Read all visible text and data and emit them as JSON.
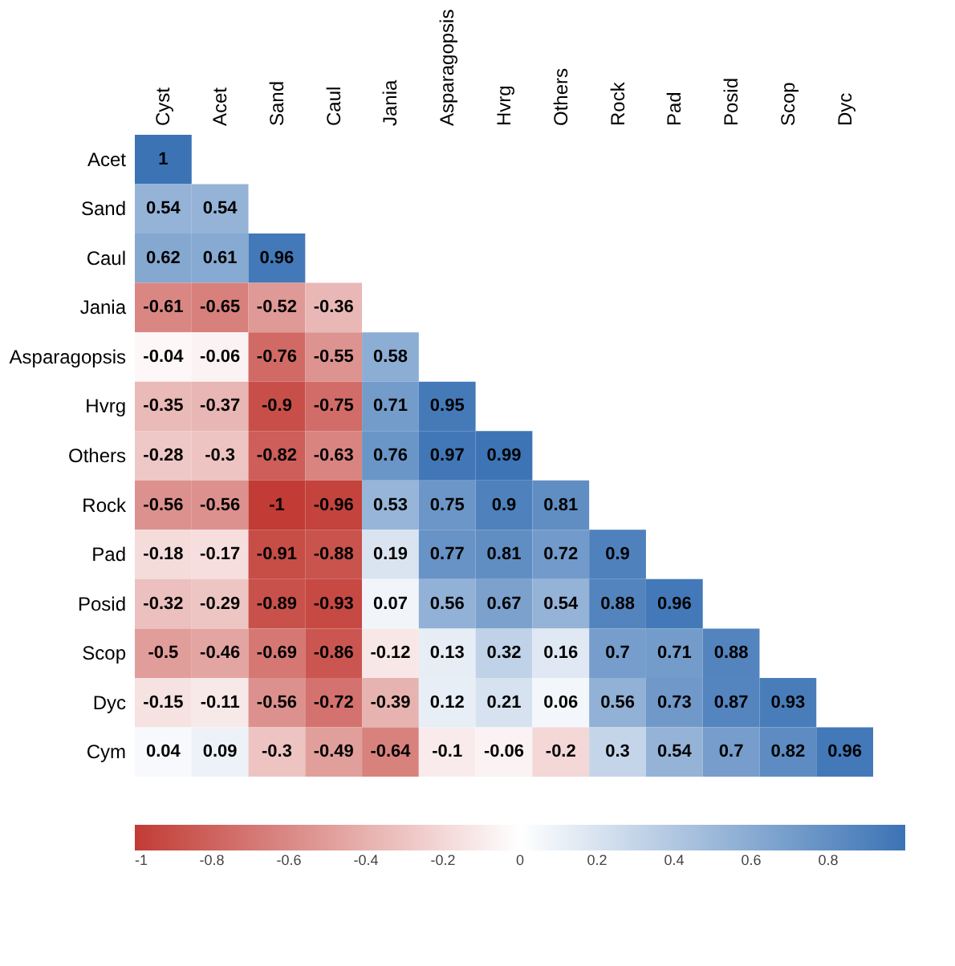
{
  "chart_data": {
    "type": "heatmap",
    "categories": [
      "Cyst",
      "Acet",
      "Sand",
      "Caul",
      "Jania",
      "Asparagopsis",
      "Hvrg",
      "Others",
      "Rock",
      "Pad",
      "Posid",
      "Scop",
      "Dyc"
    ],
    "y_categories": [
      "Acet",
      "Sand",
      "Caul",
      "Jania",
      "Asparagopsis",
      "Hvrg",
      "Others",
      "Rock",
      "Pad",
      "Posid",
      "Scop",
      "Dyc",
      "Cym"
    ],
    "cells": [
      [
        1,
        null,
        null,
        null,
        null,
        null,
        null,
        null,
        null,
        null,
        null,
        null,
        null
      ],
      [
        0.54,
        0.54,
        null,
        null,
        null,
        null,
        null,
        null,
        null,
        null,
        null,
        null,
        null
      ],
      [
        0.62,
        0.61,
        0.96,
        null,
        null,
        null,
        null,
        null,
        null,
        null,
        null,
        null,
        null
      ],
      [
        -0.61,
        -0.65,
        -0.52,
        -0.36,
        null,
        null,
        null,
        null,
        null,
        null,
        null,
        null,
        null
      ],
      [
        -0.04,
        -0.06,
        -0.76,
        -0.55,
        0.58,
        null,
        null,
        null,
        null,
        null,
        null,
        null,
        null
      ],
      [
        -0.35,
        -0.37,
        -0.9,
        -0.75,
        0.71,
        0.95,
        null,
        null,
        null,
        null,
        null,
        null,
        null
      ],
      [
        -0.28,
        -0.3,
        -0.82,
        -0.63,
        0.76,
        0.97,
        0.99,
        null,
        null,
        null,
        null,
        null,
        null
      ],
      [
        -0.56,
        -0.56,
        -1,
        -0.96,
        0.53,
        0.75,
        0.9,
        0.81,
        null,
        null,
        null,
        null,
        null
      ],
      [
        -0.18,
        -0.17,
        -0.91,
        -0.88,
        0.19,
        0.77,
        0.81,
        0.72,
        0.9,
        null,
        null,
        null,
        null
      ],
      [
        -0.32,
        -0.29,
        -0.89,
        -0.93,
        0.07,
        0.56,
        0.67,
        0.54,
        0.88,
        0.96,
        null,
        null,
        null
      ],
      [
        -0.5,
        -0.46,
        -0.69,
        -0.86,
        -0.12,
        0.13,
        0.32,
        0.16,
        0.7,
        0.71,
        0.88,
        null,
        null
      ],
      [
        -0.15,
        -0.11,
        -0.56,
        -0.72,
        -0.39,
        0.12,
        0.21,
        0.06,
        0.56,
        0.73,
        0.87,
        0.93,
        null
      ],
      [
        0.04,
        0.09,
        -0.3,
        -0.49,
        -0.64,
        -0.1,
        -0.06,
        -0.2,
        0.3,
        0.54,
        0.7,
        0.82,
        0.96
      ]
    ],
    "colors": [
      "#c23b35",
      "#ffffff",
      "#3b73b5"
    ],
    "clim": [
      -1,
      1
    ],
    "cticks": [
      -1,
      -0.8,
      -0.6,
      -0.4,
      -0.2,
      0,
      0.2,
      0.4,
      0.6,
      0.8
    ],
    "data_labels": true,
    "grid": false
  }
}
